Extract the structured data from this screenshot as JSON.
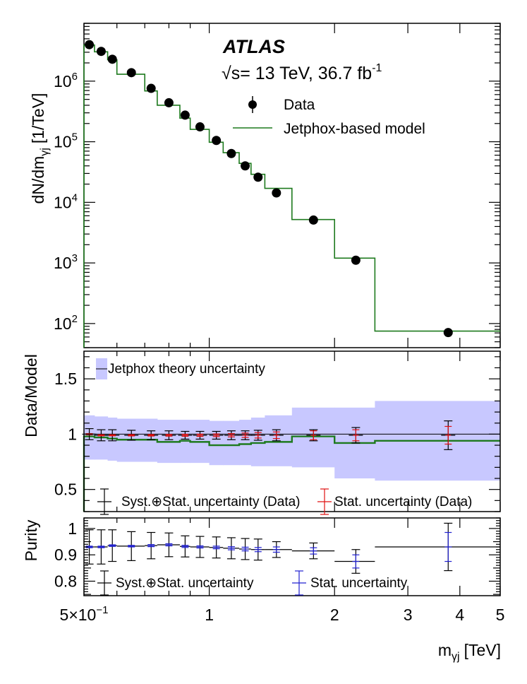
{
  "chart_data": {
    "type": "scatter",
    "experiment": "ATLAS",
    "energy_label": "= 13 TeV, 36.7 fb",
    "energy_prefix": "√s",
    "lumi_exponent": "-1",
    "x": [
      0.515,
      0.55,
      0.585,
      0.65,
      0.725,
      0.8,
      0.875,
      0.95,
      1.04,
      1.13,
      1.22,
      1.31,
      1.45,
      1.78,
      2.25,
      3.75
    ],
    "bin_edges": [
      0.5,
      0.53,
      0.57,
      0.6,
      0.7,
      0.75,
      0.85,
      0.9,
      1.0,
      1.08,
      1.18,
      1.26,
      1.36,
      1.58,
      2.0,
      2.5,
      5.0
    ],
    "xlabel": "m",
    "xlabel_sub": "γj",
    "xlabel_unit": "[TeV]",
    "xlim": [
      0.5,
      5.0
    ],
    "x_ticks": [
      {
        "v": 0.5,
        "label": "5×10",
        "exp": "−1"
      },
      {
        "v": 1,
        "label": "1",
        "exp": ""
      },
      {
        "v": 2,
        "label": "2",
        "exp": ""
      },
      {
        "v": 3,
        "label": "3",
        "exp": ""
      },
      {
        "v": 4,
        "label": "4",
        "exp": ""
      },
      {
        "v": 5,
        "label": "5",
        "exp": ""
      }
    ],
    "top_panel": {
      "ylabel": "dN/dm",
      "ylabel_sub": "γj",
      "ylabel_unit": "[1/TeV]",
      "yscale": "log",
      "ylim": [
        40,
        9000000
      ],
      "y_ticks": [
        {
          "v": 100,
          "base": "10",
          "exp": "2"
        },
        {
          "v": 1000,
          "base": "10",
          "exp": "3"
        },
        {
          "v": 10000,
          "base": "10",
          "exp": "4"
        },
        {
          "v": 100000,
          "base": "10",
          "exp": "5"
        },
        {
          "v": 1000000,
          "base": "10",
          "exp": "6"
        }
      ],
      "data_values": [
        4000000,
        3100000,
        2300000,
        1380000,
        760000,
        440000,
        275000,
        176000,
        105000,
        64000,
        40000,
        26000,
        14300,
        5100,
        1110,
        71
      ],
      "model_values": [
        3950000,
        3050000,
        2250000,
        1300000,
        690000,
        400000,
        245000,
        160000,
        98000,
        66000,
        44000,
        29000,
        17000,
        5200,
        1200,
        75
      ],
      "legend": {
        "data": "Data",
        "model": "Jetphox-based model"
      }
    },
    "ratio_panel": {
      "ylabel": "Data/Model",
      "ylim": [
        0.3,
        1.75
      ],
      "y_ticks": [
        {
          "v": 0.5,
          "label": "0.5"
        },
        {
          "v": 1,
          "label": "1"
        },
        {
          "v": 1.5,
          "label": "1.5"
        }
      ],
      "ratio_values": [
        1.0,
        0.99,
        0.99,
        0.99,
        0.99,
        0.99,
        0.99,
        0.99,
        0.99,
        0.99,
        0.99,
        0.99,
        0.99,
        0.99,
        0.99,
        0.99
      ],
      "syst_stat_err": [
        0.05,
        0.05,
        0.05,
        0.045,
        0.04,
        0.04,
        0.035,
        0.035,
        0.035,
        0.04,
        0.04,
        0.045,
        0.05,
        0.05,
        0.07,
        0.13
      ],
      "stat_err": [
        0.005,
        0.005,
        0.005,
        0.006,
        0.007,
        0.008,
        0.009,
        0.01,
        0.012,
        0.015,
        0.02,
        0.025,
        0.03,
        0.04,
        0.05,
        0.08
      ],
      "model_ratio": [
        0.98,
        0.97,
        0.96,
        0.95,
        0.95,
        0.93,
        0.94,
        0.93,
        0.9,
        0.9,
        0.91,
        0.92,
        0.93,
        0.98,
        0.92,
        0.94
      ],
      "theory_band_low": [
        0.77,
        0.77,
        0.76,
        0.75,
        0.75,
        0.74,
        0.74,
        0.74,
        0.72,
        0.72,
        0.72,
        0.71,
        0.71,
        0.7,
        0.6,
        0.58
      ],
      "theory_band_high": [
        1.17,
        1.16,
        1.15,
        1.14,
        1.14,
        1.13,
        1.13,
        1.13,
        1.12,
        1.12,
        1.13,
        1.15,
        1.17,
        1.24,
        1.24,
        1.3
      ],
      "legend": {
        "theory": "Jetphox theory uncertainty",
        "syst": "Syst.⊕Stat. uncertainty (Data)",
        "stat": "Stat. uncertainty (Data)"
      }
    },
    "purity_panel": {
      "ylabel": "Purity",
      "ylim": [
        0.745,
        1.04
      ],
      "y_ticks": [
        {
          "v": 0.8,
          "label": "0.8"
        },
        {
          "v": 0.9,
          "label": "0.9"
        },
        {
          "v": 1.0,
          "label": "1"
        }
      ],
      "purity_values": [
        0.93,
        0.93,
        0.935,
        0.933,
        0.935,
        0.938,
        0.932,
        0.93,
        0.928,
        0.925,
        0.922,
        0.92,
        0.92,
        0.915,
        0.875,
        0.93
      ],
      "syst_stat_err": [
        0.065,
        0.065,
        0.06,
        0.055,
        0.05,
        0.045,
        0.04,
        0.04,
        0.04,
        0.04,
        0.04,
        0.04,
        0.03,
        0.03,
        0.045,
        0.09
      ],
      "stat_err": [
        0.003,
        0.003,
        0.003,
        0.003,
        0.004,
        0.004,
        0.004,
        0.004,
        0.005,
        0.006,
        0.007,
        0.008,
        0.01,
        0.012,
        0.025,
        0.055
      ],
      "legend": {
        "syst": "Syst.⊕Stat. uncertainty",
        "stat": "Stat. uncertainty"
      }
    },
    "colors": {
      "data": "#000000",
      "model": "#1e7a1e",
      "band": "#c8c8ff",
      "stat_ratio": "#e01010",
      "stat_purity": "#2020d0",
      "axis": "#000000"
    }
  }
}
